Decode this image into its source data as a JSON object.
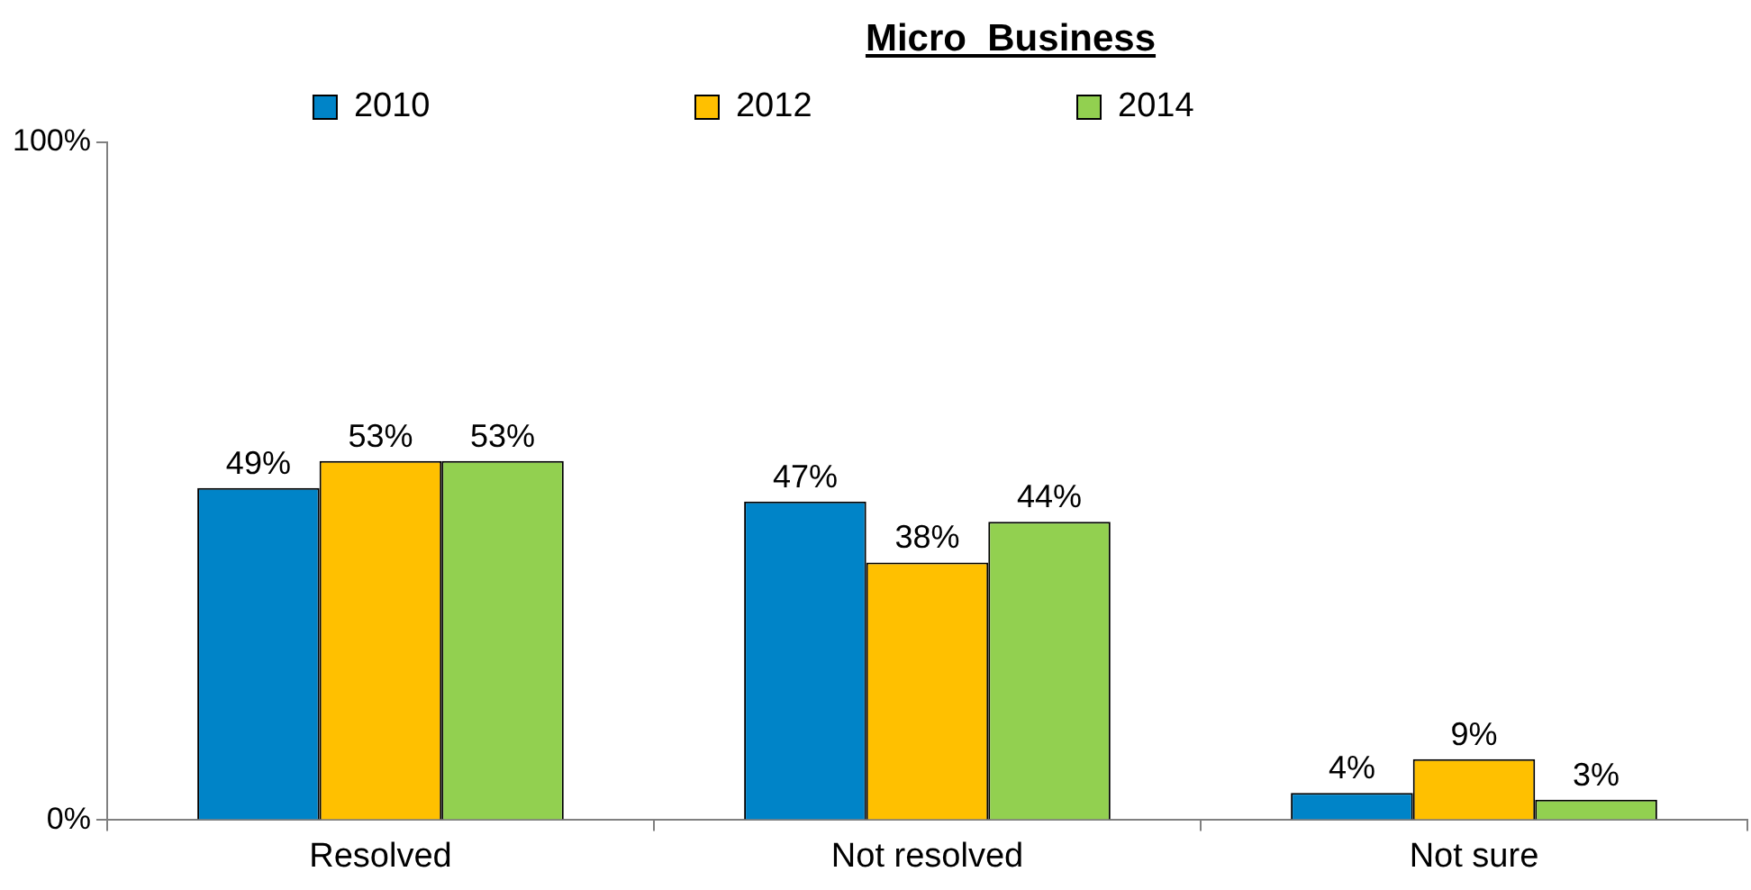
{
  "chart_data": {
    "type": "bar",
    "title": "Micro  Business",
    "categories": [
      "Resolved",
      "Not resolved",
      "Not sure"
    ],
    "series": [
      {
        "name": "2010",
        "color": "#0084c8",
        "values": [
          49,
          47,
          4
        ],
        "value_labels": [
          "49%",
          "47%",
          "4%"
        ]
      },
      {
        "name": "2012",
        "color": "#ffc000",
        "values": [
          53,
          38,
          9
        ],
        "value_labels": [
          "53%",
          "38%",
          "9%"
        ]
      },
      {
        "name": "2014",
        "color": "#92d050",
        "values": [
          53,
          44,
          3
        ],
        "value_labels": [
          "53%",
          "44%",
          "3%"
        ]
      }
    ],
    "ylim": [
      0,
      100
    ],
    "yticks": [
      {
        "value": 0,
        "label": "0%"
      },
      {
        "value": 100,
        "label": "100%"
      }
    ],
    "grid": false,
    "legend": "top"
  }
}
